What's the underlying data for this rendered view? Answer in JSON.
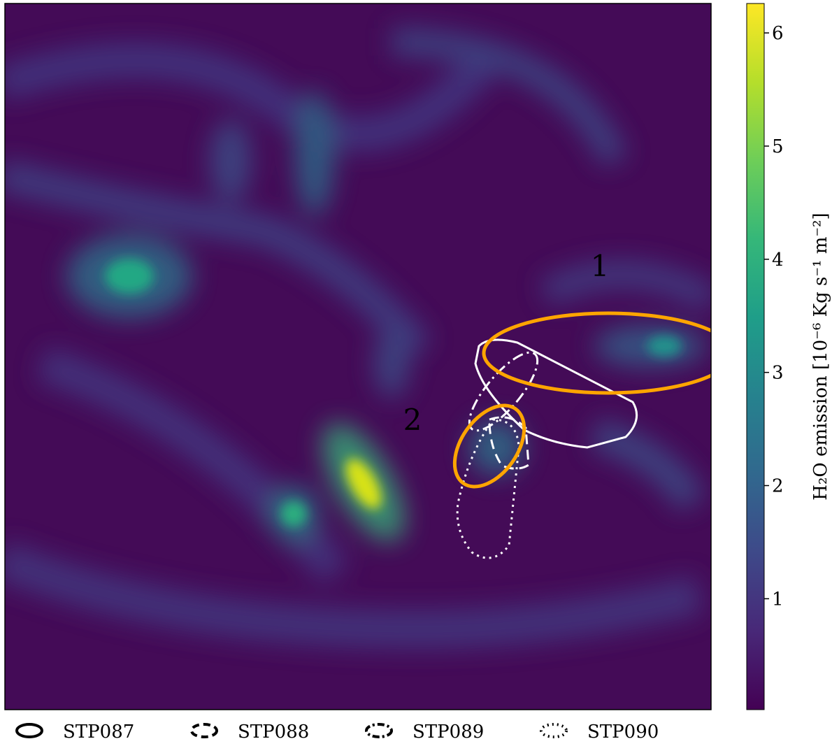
{
  "chart_data": {
    "type": "image",
    "colorbar": {
      "label": "H₂O emission [10⁻⁶ Kg s⁻¹ m⁻²]",
      "colormap": "viridis",
      "ylim": [
        0.02,
        6.26
      ],
      "yticks": [
        1,
        2,
        3,
        4,
        5,
        6
      ]
    },
    "annotations": [
      {
        "text": "1",
        "color": "#ffa500"
      },
      {
        "text": "2",
        "color": "#ffa500"
      }
    ],
    "legend": [
      {
        "name": "STP087",
        "style": "solid"
      },
      {
        "name": "STP088",
        "style": "dashed"
      },
      {
        "name": "STP089",
        "style": "dashdot"
      },
      {
        "name": "STP090",
        "style": "dotted"
      }
    ]
  }
}
